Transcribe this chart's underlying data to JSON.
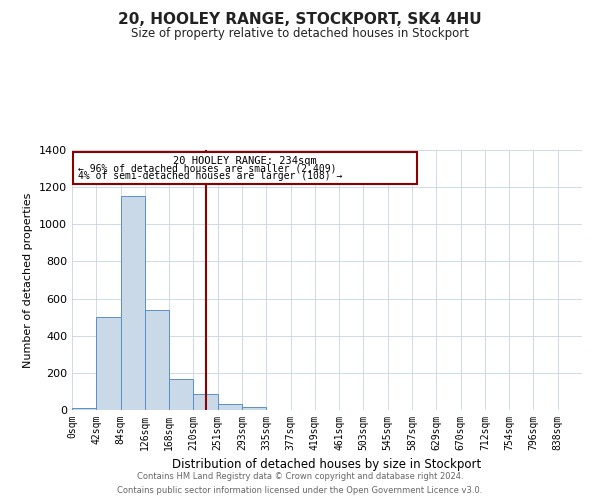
{
  "title": "20, HOOLEY RANGE, STOCKPORT, SK4 4HU",
  "subtitle": "Size of property relative to detached houses in Stockport",
  "xlabel": "Distribution of detached houses by size in Stockport",
  "ylabel": "Number of detached properties",
  "bar_labels": [
    "0sqm",
    "42sqm",
    "84sqm",
    "126sqm",
    "168sqm",
    "210sqm",
    "251sqm",
    "293sqm",
    "335sqm",
    "377sqm",
    "419sqm",
    "461sqm",
    "503sqm",
    "545sqm",
    "587sqm",
    "629sqm",
    "670sqm",
    "712sqm",
    "754sqm",
    "796sqm",
    "838sqm"
  ],
  "bar_values": [
    10,
    500,
    1150,
    540,
    165,
    85,
    30,
    18,
    0,
    0,
    0,
    0,
    0,
    0,
    0,
    0,
    0,
    0,
    0,
    0,
    0
  ],
  "bar_color": "#c9d9e8",
  "bar_edgecolor": "#5b8fc9",
  "vline_x": 5.5,
  "vline_color": "#8b0000",
  "ylim": [
    0,
    1400
  ],
  "yticks": [
    0,
    200,
    400,
    600,
    800,
    1000,
    1200,
    1400
  ],
  "annotation_title": "20 HOOLEY RANGE: 234sqm",
  "annotation_line1": "← 96% of detached houses are smaller (2,409)",
  "annotation_line2": "4% of semi-detached houses are larger (108) →",
  "annotation_box_edgecolor": "#8b0000",
  "footer_line1": "Contains HM Land Registry data © Crown copyright and database right 2024.",
  "footer_line2": "Contains public sector information licensed under the Open Government Licence v3.0.",
  "background_color": "#ffffff",
  "grid_color": "#c8d4e0"
}
